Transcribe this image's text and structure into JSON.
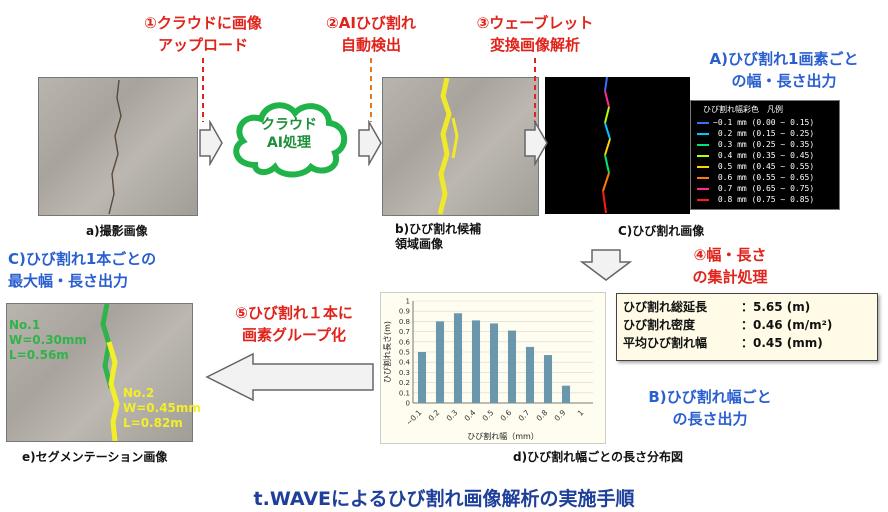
{
  "steps": {
    "s1": "①クラウドに画像\nアップロード",
    "s2": "②AIひび割れ\n自動検出",
    "s3": "③ウェーブレット\n変換画像解析",
    "s4": "④幅・長さ\nの集計処理",
    "s5": "⑤ひび割れ１本に\n画素グループ化"
  },
  "cloud_text": "クラウド\nAI処理",
  "outputs": {
    "A": "A)ひび割れ1画素ごと\nの幅・長さ出力",
    "B": "B)ひび割れ幅ごと\nの長さ出力",
    "C": "C)ひび割れ1本ごとの\n最大幅・長さ出力"
  },
  "captions": {
    "a": "a)撮影画像",
    "b": "b)ひび割れ候補\n領域画像",
    "c": "C)ひび割れ画像",
    "d": "d)ひび割れ幅ごとの長さ分布図",
    "e": "e)セグメンテーション画像"
  },
  "legend": {
    "title": "ひび割れ幅彩色　凡例",
    "rows": [
      {
        "label": "~0.1 mm (0.00 ~ 0.15)",
        "color": "#3a6fff"
      },
      {
        "label": " 0.2 mm (0.15 ~ 0.25)",
        "color": "#00c8ff"
      },
      {
        "label": " 0.3 mm (0.25 ~ 0.35)",
        "color": "#00e676"
      },
      {
        "label": " 0.4 mm (0.35 ~ 0.45)",
        "color": "#b6ff00"
      },
      {
        "label": " 0.5 mm (0.45 ~ 0.55)",
        "color": "#ffd400"
      },
      {
        "label": " 0.6 mm (0.55 ~ 0.65)",
        "color": "#ff7a00"
      },
      {
        "label": " 0.7 mm (0.65 ~ 0.75)",
        "color": "#ff2a8a"
      },
      {
        "label": " 0.8 mm (0.75 ~ 0.85)",
        "color": "#ff1a1a"
      }
    ]
  },
  "stats": [
    {
      "label": "ひび割れ総延長",
      "value": "：5.65 (m)"
    },
    {
      "label": "ひび割れ密度",
      "value": "：0.46 (m/m²)"
    },
    {
      "label": "平均ひび割れ幅",
      "value": "：0.45 (mm)"
    }
  ],
  "segments": {
    "no1": [
      "No.1",
      "W=0.30mm",
      "L=0.56m"
    ],
    "no2": [
      "No.2",
      "W=0.45mm",
      "L=0.82m"
    ],
    "no1_color": "#2fb34a",
    "no2_color": "#f2ef2a"
  },
  "chart_data": {
    "type": "bar",
    "categories": [
      "~0.1",
      "0.2",
      "0.3",
      "0.4",
      "0.5",
      "0.6",
      "0.7",
      "0.8",
      "0.9",
      "1"
    ],
    "values": [
      0.5,
      0.8,
      0.88,
      0.81,
      0.78,
      0.71,
      0.55,
      0.47,
      0.17,
      0
    ],
    "xlabel": "ひび割れ幅（mm）",
    "ylabel": "ひび割れ長さ(m)",
    "ylim": [
      0,
      1
    ],
    "yticks": [
      "0",
      "0.1",
      "0.2",
      "0.3",
      "0.4",
      "0.5",
      "0.6",
      "0.7",
      "0.8",
      "0.9",
      "1"
    ],
    "bar_color": "#6b97ad",
    "grid": true
  },
  "title": "t.WAVEによるひび割れ画像解析の実施手順"
}
